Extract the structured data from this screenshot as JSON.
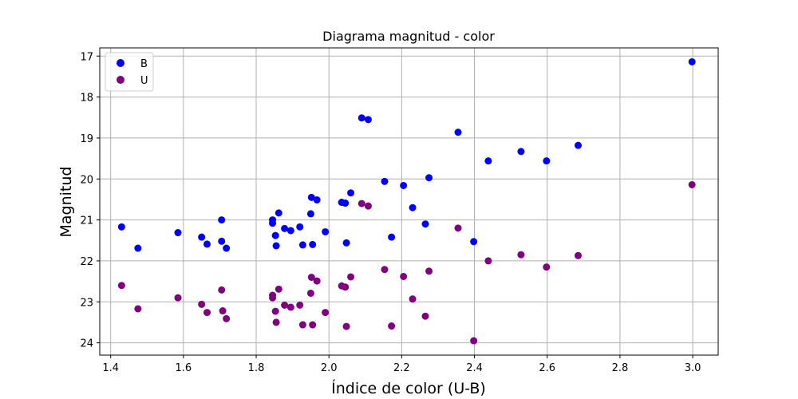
{
  "chart_data": {
    "type": "scatter",
    "title": "Diagrama magnitud - color",
    "xlabel": "Índice de color (U-B)",
    "ylabel": "Magnitud",
    "xlim": [
      1.37,
      3.07
    ],
    "ylim": [
      24.3,
      16.8
    ],
    "y_inverted": true,
    "grid": true,
    "legend_position": "top-left",
    "x_ticks": [
      "1.4",
      "1.6",
      "1.8",
      "2.0",
      "2.2",
      "2.4",
      "2.6",
      "2.8",
      "3.0"
    ],
    "y_ticks": [
      "17",
      "18",
      "19",
      "20",
      "21",
      "22",
      "23",
      "24"
    ],
    "series": [
      {
        "name": "B",
        "color": "#0000ff",
        "points": [
          [
            1.43,
            21.17
          ],
          [
            1.475,
            21.69
          ],
          [
            1.585,
            21.31
          ],
          [
            1.65,
            21.42
          ],
          [
            1.665,
            21.59
          ],
          [
            1.705,
            21.0
          ],
          [
            1.705,
            21.52
          ],
          [
            1.718,
            21.69
          ],
          [
            1.845,
            21.0
          ],
          [
            1.845,
            21.08
          ],
          [
            1.853,
            21.38
          ],
          [
            1.855,
            21.63
          ],
          [
            1.862,
            20.83
          ],
          [
            1.878,
            21.21
          ],
          [
            1.895,
            21.26
          ],
          [
            1.92,
            21.17
          ],
          [
            1.928,
            21.61
          ],
          [
            1.95,
            20.85
          ],
          [
            1.952,
            20.45
          ],
          [
            1.955,
            21.6
          ],
          [
            1.967,
            20.51
          ],
          [
            1.99,
            21.29
          ],
          [
            2.035,
            20.57
          ],
          [
            2.045,
            20.59
          ],
          [
            2.048,
            21.56
          ],
          [
            2.06,
            20.34
          ],
          [
            2.09,
            18.51
          ],
          [
            2.108,
            18.55
          ],
          [
            2.153,
            20.06
          ],
          [
            2.172,
            21.42
          ],
          [
            2.205,
            20.16
          ],
          [
            2.23,
            20.7
          ],
          [
            2.265,
            21.1
          ],
          [
            2.275,
            19.97
          ],
          [
            2.355,
            18.86
          ],
          [
            2.398,
            21.53
          ],
          [
            2.438,
            19.56
          ],
          [
            2.528,
            19.33
          ],
          [
            2.598,
            19.56
          ],
          [
            2.685,
            19.18
          ],
          [
            2.998,
            17.14
          ]
        ]
      },
      {
        "name": "U",
        "color": "#800080",
        "points": [
          [
            1.43,
            22.6
          ],
          [
            1.475,
            23.17
          ],
          [
            1.585,
            22.9
          ],
          [
            1.65,
            23.06
          ],
          [
            1.665,
            23.26
          ],
          [
            1.705,
            22.71
          ],
          [
            1.708,
            23.22
          ],
          [
            1.718,
            23.41
          ],
          [
            1.845,
            22.84
          ],
          [
            1.845,
            22.9
          ],
          [
            1.853,
            23.23
          ],
          [
            1.855,
            23.5
          ],
          [
            1.862,
            22.69
          ],
          [
            1.878,
            23.08
          ],
          [
            1.895,
            23.13
          ],
          [
            1.92,
            23.08
          ],
          [
            1.928,
            23.56
          ],
          [
            1.95,
            22.79
          ],
          [
            1.952,
            22.4
          ],
          [
            1.955,
            23.56
          ],
          [
            1.967,
            22.49
          ],
          [
            1.99,
            23.26
          ],
          [
            2.035,
            22.61
          ],
          [
            2.045,
            22.64
          ],
          [
            2.048,
            23.6
          ],
          [
            2.06,
            22.39
          ],
          [
            2.09,
            20.6
          ],
          [
            2.108,
            20.66
          ],
          [
            2.153,
            22.21
          ],
          [
            2.172,
            23.59
          ],
          [
            2.205,
            22.38
          ],
          [
            2.23,
            22.93
          ],
          [
            2.265,
            23.35
          ],
          [
            2.275,
            22.25
          ],
          [
            2.355,
            21.2
          ],
          [
            2.398,
            23.95
          ],
          [
            2.438,
            22.0
          ],
          [
            2.528,
            21.85
          ],
          [
            2.598,
            22.15
          ],
          [
            2.685,
            21.87
          ],
          [
            2.998,
            20.14
          ]
        ]
      }
    ]
  }
}
